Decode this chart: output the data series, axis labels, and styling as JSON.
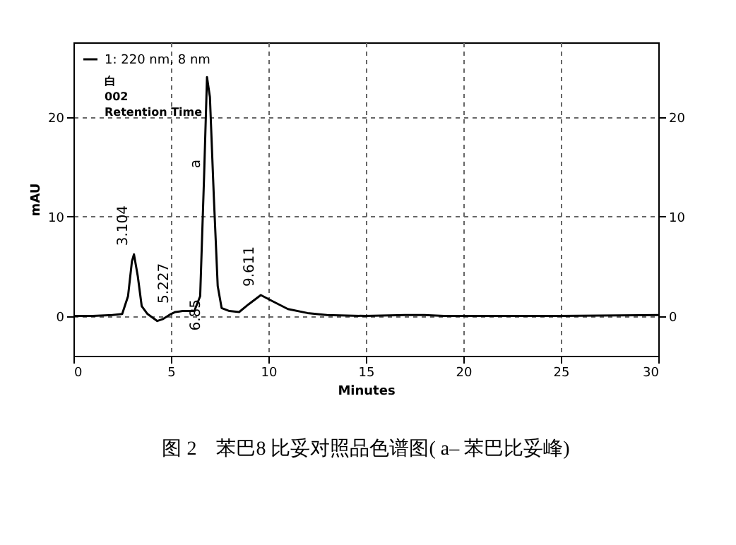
{
  "chart_data": {
    "type": "line",
    "title": "图 2　苯巴8 比妥对照品色谱图( a–  苯巴比妥峰)",
    "xlabel": "Minutes",
    "ylabel": "mAU",
    "x": [
      0,
      1,
      2,
      2.5,
      2.8,
      3.0,
      3.104,
      3.3,
      3.5,
      3.8,
      4.3,
      4.6,
      5.0,
      5.227,
      5.6,
      6.2,
      6.5,
      6.7,
      6.85,
      7.0,
      7.2,
      7.4,
      7.6,
      8,
      8.5,
      9,
      9.611,
      10.2,
      11,
      12,
      13,
      15,
      17,
      18,
      19,
      20,
      25,
      30
    ],
    "series": [
      {
        "name": "1: 220 nm, 8 nm",
        "color": "#000000",
        "values": [
          0,
          0,
          0.1,
          0.2,
          2,
          5.5,
          6.2,
          4,
          1,
          0.2,
          -0.5,
          -0.3,
          0.2,
          0.4,
          0.5,
          0.5,
          2,
          14,
          24,
          22,
          12,
          3,
          0.8,
          0.5,
          0.4,
          1.2,
          2.1,
          1.5,
          0.7,
          0.3,
          0.1,
          0,
          0.1,
          0.1,
          0,
          0,
          0,
          0.1
        ]
      }
    ],
    "xlim": [
      0,
      30
    ],
    "xticks": [
      0,
      5,
      10,
      15,
      20,
      25,
      30
    ],
    "ylim": [
      -4,
      27.5
    ],
    "yticks": [
      0,
      10,
      20
    ],
    "y2lim": [
      -4,
      27.5
    ],
    "y2ticks": [
      0,
      10,
      20
    ],
    "grid": true,
    "legend": "top left",
    "marker": "none",
    "line_style": "solid",
    "annotations": [
      {
        "text": "3.104",
        "x": 3.104,
        "y": 6.2
      },
      {
        "text": "5.227",
        "x": 5.227,
        "y": 0.4
      },
      "6.85",
      {
        "text": "a",
        "x": 6.85,
        "y": 14
      },
      {
        "text": "9.611",
        "x": 9.611,
        "y": 2.1
      },
      "白",
      "002",
      "Retention Time"
    ]
  }
}
